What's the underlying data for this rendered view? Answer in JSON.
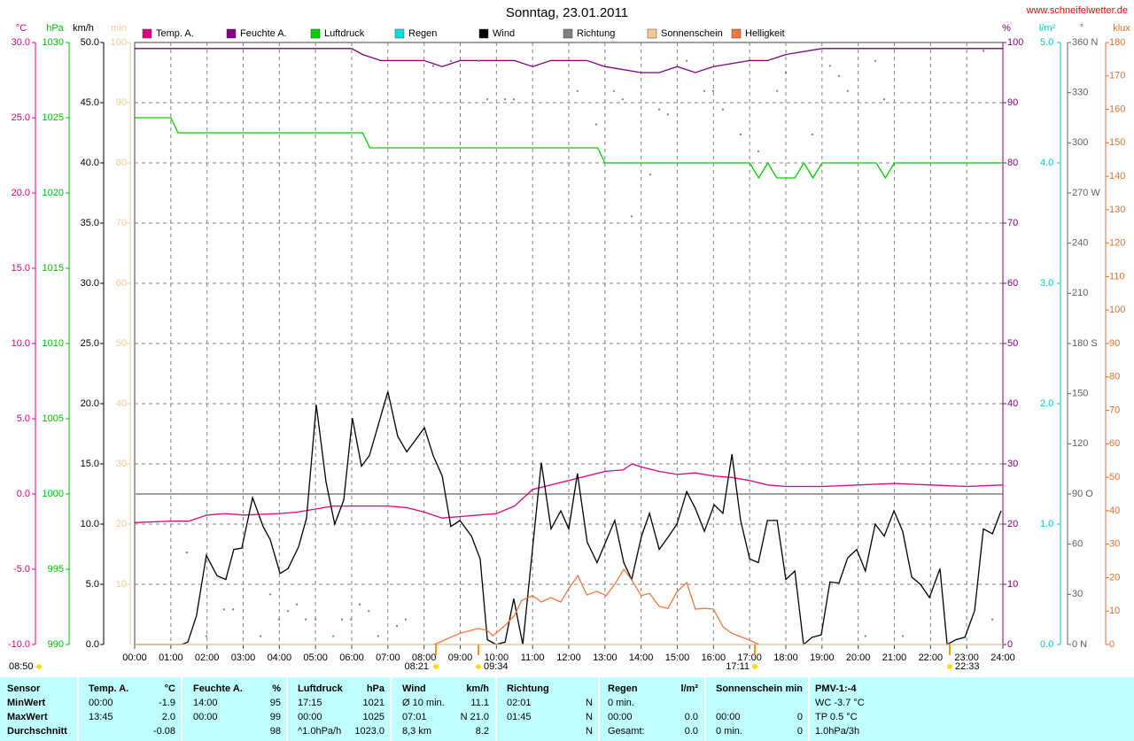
{
  "chart_data": {
    "type": "line",
    "title": "Sonntag, 23.01.2011",
    "source": "www.schneifelwetter.de",
    "xlim": [
      0,
      24
    ],
    "xticks": [
      {
        "value": 0,
        "label": "00:00"
      },
      {
        "value": 1,
        "label": "01:00"
      },
      {
        "value": 2,
        "label": "02:00"
      },
      {
        "value": 3,
        "label": "03:00"
      },
      {
        "value": 4,
        "label": "04:00"
      },
      {
        "value": 5,
        "label": "05:00"
      },
      {
        "value": 6,
        "label": "06:00"
      },
      {
        "value": 7,
        "label": "07:00"
      },
      {
        "value": 8,
        "label": "08:00"
      },
      {
        "value": 9,
        "label": "09:00"
      },
      {
        "value": 10,
        "label": "10:00"
      },
      {
        "value": 11,
        "label": "11:00"
      },
      {
        "value": 12,
        "label": "12:00"
      },
      {
        "value": 13,
        "label": "13:00"
      },
      {
        "value": 14,
        "label": "14:00"
      },
      {
        "value": 15,
        "label": "15:00"
      },
      {
        "value": 16,
        "label": "16:00"
      },
      {
        "value": 17,
        "label": "17:00"
      },
      {
        "value": 18,
        "label": "18:00"
      },
      {
        "value": 19,
        "label": "19:00"
      },
      {
        "value": 20,
        "label": "20:00"
      },
      {
        "value": 21,
        "label": "21:00"
      },
      {
        "value": 22,
        "label": "22:00"
      },
      {
        "value": 23,
        "label": "23:00"
      },
      {
        "value": 24,
        "label": "24:00"
      }
    ],
    "xgrid": true,
    "axes": [
      {
        "id": "temp",
        "label": "°C",
        "color": "#e0007f",
        "lim": [
          -10,
          30
        ],
        "zero_line": true,
        "ticks": [
          {
            "value": -10,
            "label": "-10.0"
          },
          {
            "value": -5,
            "label": "-5.0"
          },
          {
            "value": 0,
            "label": "0.0"
          },
          {
            "value": 5,
            "label": "5.0"
          },
          {
            "value": 10,
            "label": "10.0"
          },
          {
            "value": 15,
            "label": "15.0"
          },
          {
            "value": 20,
            "label": "20.0"
          },
          {
            "value": 25,
            "label": "25.0"
          },
          {
            "value": 30,
            "label": "30.0"
          }
        ]
      },
      {
        "id": "hpa",
        "label": "hPa",
        "color": "#00c000",
        "lim": [
          990,
          1030
        ],
        "ticks": [
          990,
          995,
          1000,
          1005,
          1010,
          1015,
          1020,
          1025,
          1030
        ]
      },
      {
        "id": "kmh",
        "label": "km/h",
        "color": "#000000",
        "lim": [
          0,
          50
        ],
        "grid": true,
        "ticks": [
          {
            "value": 0,
            "label": "0.0"
          },
          {
            "value": 5,
            "label": "5.0"
          },
          {
            "value": 10,
            "label": "10.0"
          },
          {
            "value": 15,
            "label": "15.0"
          },
          {
            "value": 20,
            "label": "20.0"
          },
          {
            "value": 25,
            "label": "25.0"
          },
          {
            "value": 30,
            "label": "30.0"
          },
          {
            "value": 35,
            "label": "35.0"
          },
          {
            "value": 40,
            "label": "40.0"
          },
          {
            "value": 45,
            "label": "45.0"
          },
          {
            "value": 50,
            "label": "50.0"
          }
        ]
      },
      {
        "id": "min",
        "label": "min",
        "color": "#f8c890",
        "lim": [
          0,
          100
        ],
        "ticks": [
          10,
          20,
          30,
          40,
          50,
          60,
          70,
          80,
          90,
          100
        ]
      },
      {
        "id": "pct",
        "label": "%",
        "color": "#800080",
        "lim": [
          0,
          100
        ],
        "ticks": [
          0,
          10,
          20,
          30,
          40,
          50,
          60,
          70,
          80,
          90,
          100
        ]
      },
      {
        "id": "rain",
        "label": "l/m²",
        "color": "#00c8c8",
        "lim": [
          0,
          5
        ],
        "ticks": [
          {
            "value": 0,
            "label": "0.0"
          },
          {
            "value": 1,
            "label": "1.0"
          },
          {
            "value": 2,
            "label": "2.0"
          },
          {
            "value": 3,
            "label": "3.0"
          },
          {
            "value": 4,
            "label": "4.0"
          },
          {
            "value": 5,
            "label": "5.0"
          }
        ]
      },
      {
        "id": "deg",
        "label": "°",
        "color": "#606060",
        "lim": [
          0,
          360
        ],
        "ticks": [
          {
            "value": 0,
            "label": "0   N"
          },
          30,
          60,
          {
            "value": 90,
            "label": "90   O"
          },
          120,
          150,
          {
            "value": 180,
            "label": "180 S"
          },
          210,
          240,
          {
            "value": 270,
            "label": "270 W"
          },
          300,
          330,
          {
            "value": 360,
            "label": "360 N"
          }
        ]
      },
      {
        "id": "klux",
        "label": "klux",
        "color": "#e07030",
        "lim": [
          0,
          180
        ],
        "ticks": [
          0,
          10,
          20,
          30,
          40,
          50,
          60,
          70,
          80,
          90,
          100,
          110,
          120,
          130,
          140,
          150,
          160,
          170,
          180
        ]
      }
    ],
    "series": [
      {
        "name": "Temp. A.",
        "color": "#e0007f",
        "axis": "temp",
        "x": [
          0,
          1,
          1.5,
          2,
          2.5,
          3,
          4,
          4.5,
          5,
          5.5,
          6,
          7,
          7.5,
          8,
          8.5,
          9,
          9.5,
          10,
          10.5,
          11,
          11.5,
          12,
          12.5,
          13,
          13.5,
          13.75,
          14,
          14.5,
          15,
          15.5,
          16,
          16.5,
          17,
          17.5,
          18,
          19,
          20,
          21,
          22,
          23,
          24
        ],
        "values": [
          -1.9,
          -1.8,
          -1.8,
          -1.4,
          -1.3,
          -1.4,
          -1.3,
          -1.2,
          -1.0,
          -0.8,
          -0.8,
          -0.8,
          -0.9,
          -1.2,
          -1.6,
          -1.5,
          -1.4,
          -1.3,
          -0.8,
          0.3,
          0.6,
          0.9,
          1.2,
          1.5,
          1.6,
          2.0,
          1.8,
          1.5,
          1.3,
          1.4,
          1.2,
          1.1,
          0.9,
          0.6,
          0.5,
          0.5,
          0.6,
          0.7,
          0.6,
          0.5,
          0.6
        ]
      },
      {
        "name": "Feuchte A.",
        "color": "#800080",
        "axis": "pct",
        "x": [
          0,
          6.0,
          6.3,
          6.8,
          8.0,
          8.5,
          9.0,
          10.0,
          10.5,
          11.0,
          11.5,
          12.0,
          12.5,
          13.0,
          14.0,
          14.5,
          15.0,
          15.5,
          16.0,
          17.0,
          17.5,
          18.0,
          19.0,
          24
        ],
        "values": [
          99,
          99,
          98,
          97,
          97,
          96,
          97,
          97,
          97,
          96,
          97,
          97,
          97,
          96,
          95,
          95,
          96,
          95,
          96,
          97,
          97,
          98,
          99,
          99
        ]
      },
      {
        "name": "Luftdruck",
        "color": "#00d000",
        "axis": "hpa",
        "x": [
          0,
          1.0,
          1.2,
          6.3,
          6.5,
          12.8,
          13.0,
          17.0,
          17.25,
          17.5,
          17.75,
          18.25,
          18.5,
          18.75,
          19.0,
          20.5,
          20.75,
          21.0,
          24
        ],
        "values": [
          1025,
          1025,
          1024,
          1024,
          1023,
          1023,
          1022,
          1022,
          1021,
          1022,
          1021,
          1021,
          1022,
          1021,
          1022,
          1022,
          1021,
          1022,
          1022
        ]
      },
      {
        "name": "Regen",
        "color": "#00e0e0",
        "axis": "rain",
        "x": [
          0,
          24
        ],
        "values": [
          0,
          0
        ]
      },
      {
        "name": "Wind",
        "color": "#000000",
        "axis": "kmh",
        "x": [
          0,
          1.3,
          1.47,
          1.71,
          1.98,
          2.28,
          2.52,
          2.74,
          2.96,
          3.26,
          3.55,
          3.75,
          4.02,
          4.24,
          4.53,
          4.75,
          5.02,
          5.29,
          5.53,
          5.78,
          6.02,
          6.27,
          6.49,
          7.0,
          7.27,
          7.52,
          8.01,
          8.25,
          8.5,
          8.74,
          8.99,
          9.31,
          9.55,
          9.75,
          9.99,
          10.24,
          10.48,
          10.73,
          11.24,
          11.51,
          11.78,
          12.0,
          12.24,
          12.51,
          12.78,
          13.27,
          13.52,
          13.74,
          14.01,
          14.23,
          14.5,
          14.74,
          14.99,
          15.26,
          15.5,
          15.75,
          16.02,
          16.26,
          16.51,
          16.75,
          17.0,
          17.24,
          17.49,
          17.76,
          18.0,
          18.25,
          18.49,
          18.73,
          18.98,
          19.22,
          19.47,
          19.71,
          19.96,
          20.2,
          20.47,
          20.72,
          20.99,
          21.23,
          21.48,
          21.72,
          21.97,
          22.26,
          22.46,
          22.7,
          22.95,
          23.22,
          23.46,
          23.71,
          23.95
        ],
        "values": [
          0,
          0,
          0.2,
          2.4,
          7.4,
          5.7,
          5.4,
          7.9,
          8.0,
          12.2,
          9.8,
          8.7,
          5.9,
          6.3,
          8.1,
          10.5,
          19.9,
          13.5,
          10.0,
          12.0,
          18.8,
          14.8,
          15.7,
          21.0,
          17.3,
          16.0,
          18.0,
          15.7,
          14.0,
          9.8,
          10.3,
          9.0,
          7.1,
          0.4,
          0,
          0.2,
          3.8,
          0,
          15.1,
          9.6,
          11.1,
          9.6,
          14.2,
          8.5,
          6.8,
          10.3,
          6.8,
          5.4,
          9.0,
          10.9,
          7.9,
          8.9,
          10.0,
          12.7,
          11.3,
          9.4,
          11.6,
          10.9,
          15.8,
          10.3,
          7.1,
          6.8,
          10.3,
          10.3,
          5.4,
          6.1,
          0,
          0.6,
          0.8,
          5.2,
          5.1,
          7.2,
          7.9,
          6.1,
          10.0,
          9.0,
          11.1,
          9.4,
          5.6,
          5.0,
          3.9,
          6.3,
          0,
          0.4,
          0.6,
          2.8,
          9.6,
          9.2,
          11.1
        ]
      },
      {
        "name": "Richtung",
        "color": "#808080",
        "axis": "deg",
        "mode": "dots",
        "x": [
          1.44,
          1.98,
          2.47,
          2.72,
          3.48,
          3.75,
          3.99,
          4.24,
          4.48,
          4.73,
          5.0,
          5.49,
          5.73,
          5.98,
          6.22,
          6.47,
          6.73,
          7.25,
          7.49,
          8.25,
          8.74,
          9.5,
          9.75,
          10.24,
          10.48,
          12.24,
          12.76,
          13.25,
          13.49,
          13.74,
          14.25,
          14.5,
          14.74,
          15.26,
          15.75,
          15.99,
          16.26,
          16.75,
          17.24,
          17.76,
          18.0,
          18.73,
          19.22,
          19.47,
          19.71,
          20.2,
          20.47,
          20.72,
          21.23,
          23.46,
          23.71
        ],
        "values": [
          55,
          5,
          21,
          21,
          5,
          30,
          15,
          20,
          24,
          15,
          15,
          5,
          15,
          15,
          24,
          20,
          5,
          11,
          15,
          346,
          349,
          349,
          326,
          326,
          326,
          331,
          311,
          331,
          326,
          256,
          281,
          320,
          317,
          349,
          331,
          331,
          320,
          305,
          295,
          331,
          342,
          305,
          346,
          340,
          331,
          5,
          349,
          326,
          5,
          355,
          15
        ]
      },
      {
        "name": "Sonnenschein",
        "color": "#f8c890",
        "axis": "min",
        "x": [
          0,
          24
        ],
        "values": [
          0,
          0
        ]
      },
      {
        "name": "Helligkeit",
        "color": "#f07840",
        "axis": "klux",
        "x": [
          8.28,
          9.0,
          9.5,
          9.75,
          9.9,
          10.25,
          10.5,
          10.7,
          11.0,
          11.24,
          11.5,
          11.78,
          12.0,
          12.25,
          12.5,
          12.78,
          13.03,
          13.27,
          13.52,
          13.74,
          14.0,
          14.23,
          14.5,
          14.74,
          15.0,
          15.26,
          15.5,
          15.75,
          16.0,
          16.26,
          16.5,
          17.0,
          17.25
        ],
        "values": [
          0,
          3.4,
          4.8,
          4.2,
          2.6,
          5.8,
          8.7,
          13.2,
          14.6,
          12.7,
          14,
          12.7,
          16.7,
          20.6,
          14.8,
          15.9,
          14.6,
          18,
          22.5,
          19.3,
          14.6,
          15.3,
          11.4,
          10.8,
          15.9,
          18.5,
          10.6,
          10.8,
          10.6,
          5.3,
          3.4,
          1.3,
          0
        ]
      }
    ],
    "annotations": [
      "08:50",
      "08:21",
      "09:34",
      "17:11",
      "22:33"
    ]
  },
  "table": {
    "headers": [
      "Sensor",
      "Temp. A.",
      "°C",
      "Feuchte A.",
      "%",
      "Luftdruck",
      "hPa",
      "Wind",
      "km/h",
      "Richtung",
      null,
      "Regen",
      "l/m²",
      "Sonnenschein",
      "min",
      "PMV-1:-4"
    ],
    "rows": [
      [
        "MinWert",
        "00:00",
        "-1.9",
        "14:00",
        "95",
        "17:15",
        "1021",
        "Ø 10 min.",
        "11.1",
        "02:01",
        "N",
        "0 min.",
        null,
        null,
        null,
        "WC -3.7 °C"
      ],
      [
        "MaxWert",
        "13:45",
        "2.0",
        "00:00",
        "99",
        "00:00",
        "1025",
        "07:01",
        "N 21.0",
        "01:45",
        "N",
        "00:00",
        "0.0",
        "00:00",
        "0",
        "TP 0.5 °C"
      ],
      [
        "Durchschnitt",
        null,
        "-0.08",
        null,
        "98",
        "^1.0hPa/h",
        "1023.0",
        "8,3 km",
        "8.2",
        null,
        "N",
        "Gesamt:",
        "0.0",
        "0 min.",
        "0",
        "1.0hPa/3h"
      ]
    ]
  }
}
